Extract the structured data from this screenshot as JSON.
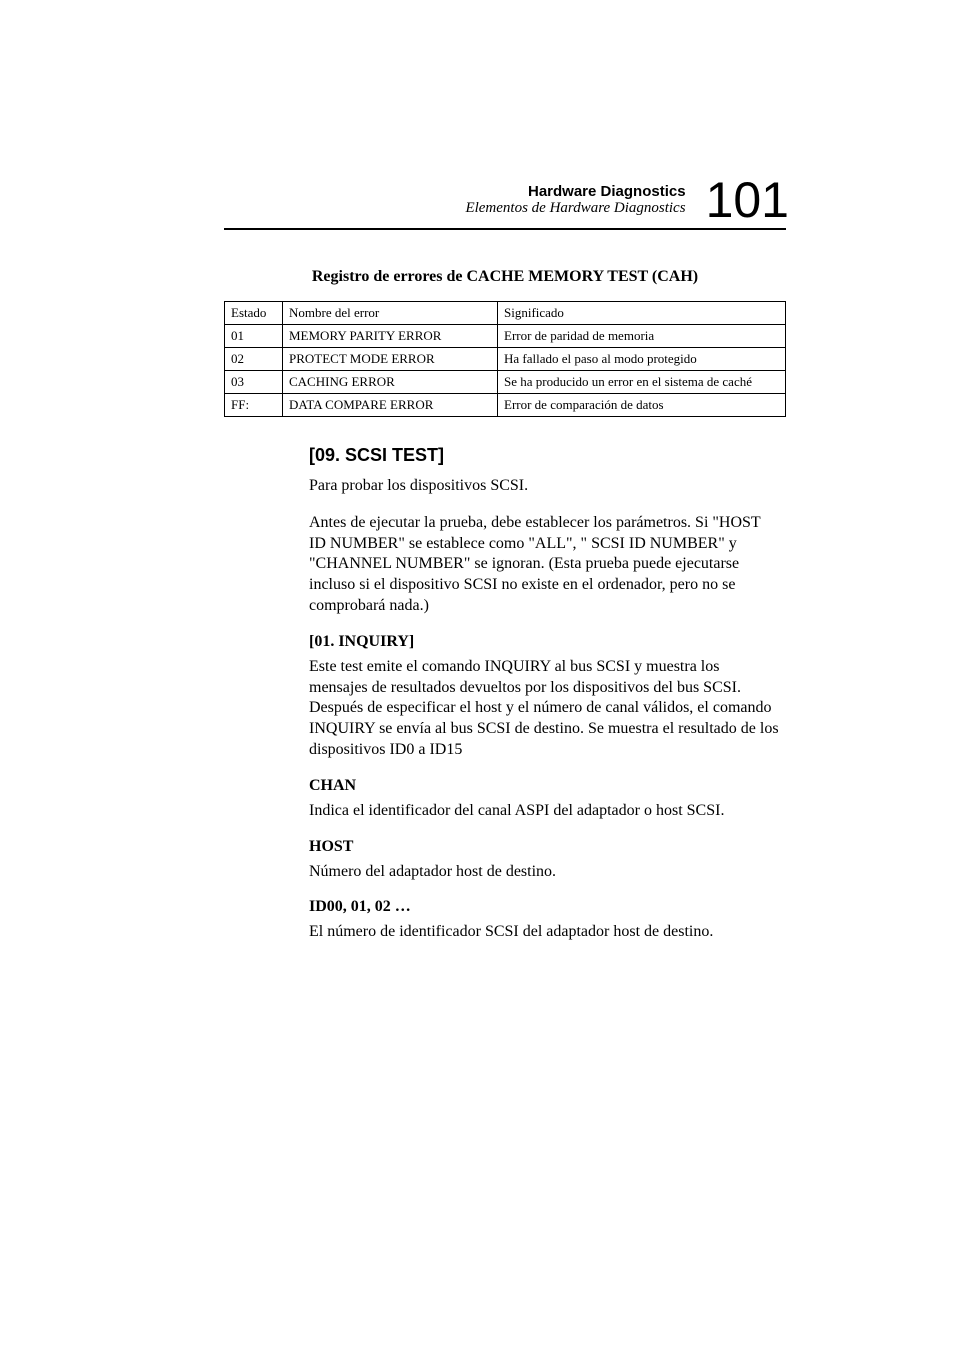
{
  "header": {
    "title": "Hardware Diagnostics",
    "subtitle": "Elementos de Hardware Diagnostics",
    "page_number": "101"
  },
  "table": {
    "title": "Registro de errores de CACHE MEMORY TEST (CAH)",
    "columns": [
      "Estado",
      "Nombre del error",
      "Significado"
    ],
    "rows": [
      [
        "01",
        "MEMORY PARITY ERROR",
        "Error de paridad de memoria"
      ],
      [
        "02",
        "PROTECT MODE ERROR",
        "Ha fallado el paso al modo protegido"
      ],
      [
        "03",
        "CACHING ERROR",
        "Se ha producido un error en el sistema de caché"
      ],
      [
        "FF:",
        "DATA COMPARE ERROR",
        "Error de comparación de datos"
      ]
    ]
  },
  "section": {
    "title": "[09. SCSI TEST]",
    "intro": "Para probar los dispositivos SCSI.",
    "desc": "Antes de ejecutar la prueba, debe establecer los parámetros. Si \"HOST ID NUMBER\" se establece como \"ALL\", \" SCSI ID NUMBER\" y \"CHANNEL NUMBER\" se ignoran. (Esta prueba puede ejecutarse incluso si el dispositivo SCSI no existe en el ordenador, pero no se comprobará nada.)",
    "sub1_title": "[01. INQUIRY]",
    "sub1_text": "Este test emite el comando INQUIRY al bus SCSI y muestra los mensajes de resultados devueltos por  los dispositivos del bus SCSI. Después de especificar el host y el número de canal válidos, el comando INQUIRY se envía al bus SCSI de destino. Se muestra el resultado de los dispositivos ID0 a ID15",
    "sub2_title": "CHAN",
    "sub2_text": "Indica el identificador del canal ASPI del adaptador o host SCSI.",
    "sub3_title": "HOST",
    "sub3_text": "Número del adaptador host de destino.",
    "sub4_title": "ID00, 01, 02 …",
    "sub4_text": "El número de identificador SCSI del adaptador host de destino."
  }
}
